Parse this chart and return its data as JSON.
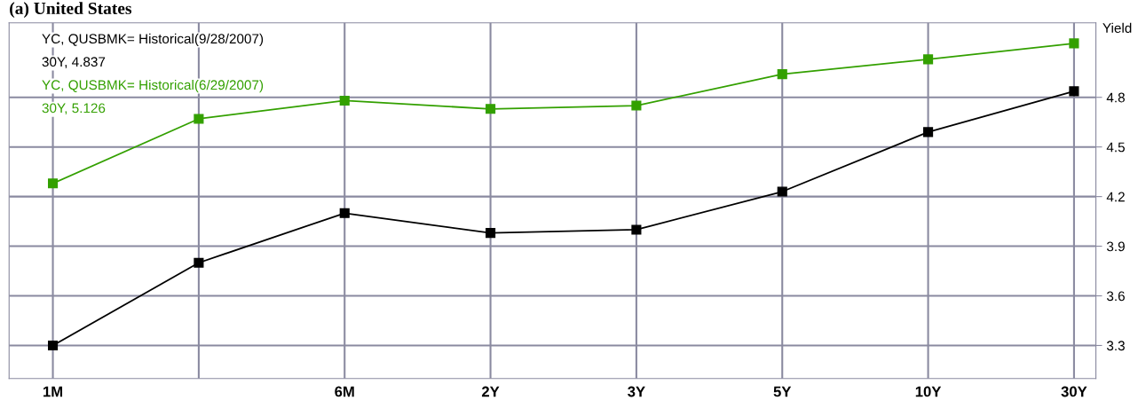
{
  "chart_data": {
    "type": "line",
    "title": "(a) United States",
    "ylabel": "Yield",
    "categories": [
      "1M",
      null,
      "6M",
      "2Y",
      "3Y",
      "5Y",
      "10Y",
      "30Y"
    ],
    "ylim": [
      3.1,
      5.25
    ],
    "yticks": [
      3.3,
      3.6,
      3.9,
      4.2,
      4.5,
      4.8
    ],
    "series": [
      {
        "name": "YC, QUSBMK= Historical(9/28/2007)",
        "color": "#000000",
        "values": [
          3.3,
          3.8,
          4.1,
          3.98,
          4.0,
          4.23,
          4.59,
          4.837
        ]
      },
      {
        "name": "YC, QUSBMK= Historical(6/29/2007)",
        "color": "#33a000",
        "values": [
          4.28,
          4.67,
          4.78,
          4.73,
          4.75,
          4.94,
          5.03,
          5.126
        ]
      }
    ],
    "annotations": [
      "30Y, 4.837",
      "30Y, 5.126"
    ],
    "grid": true,
    "legend": "top left",
    "marker": "square",
    "line_style": "solid"
  }
}
